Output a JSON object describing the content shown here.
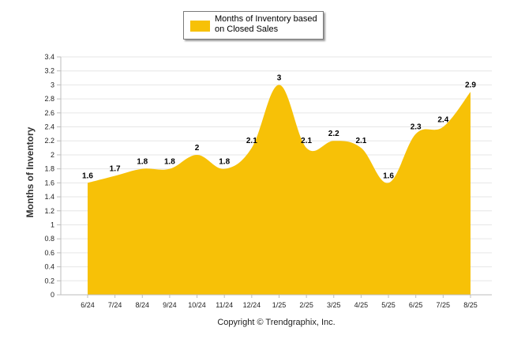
{
  "colors": {
    "area": "#f7c107",
    "grid": "#e6e6e6",
    "axis": "#bdbdbd"
  },
  "chart_data": {
    "type": "area",
    "categories": [
      "6/24",
      "7/24",
      "8/24",
      "9/24",
      "10/24",
      "11/24",
      "12/24",
      "1/25",
      "2/25",
      "3/25",
      "4/25",
      "5/25",
      "6/25",
      "7/25",
      "8/25"
    ],
    "series": [
      {
        "name": "Months of Inventory based on Closed Sales",
        "values": [
          1.6,
          1.7,
          1.8,
          1.8,
          2,
          1.8,
          2.1,
          3,
          2.1,
          2.2,
          2.1,
          1.6,
          2.3,
          2.4,
          2.9
        ]
      }
    ],
    "value_labels": [
      "1.6",
      "1.7",
      "1.8",
      "1.8",
      "2",
      "1.8",
      "2.1",
      "3",
      "2.1",
      "2.2",
      "2.1",
      "1.6",
      "2.3",
      "2.4",
      "2.9"
    ],
    "ylabel": "Months of Inventory",
    "ylim": [
      0,
      3.4
    ],
    "yticks": [
      "0",
      "0.2",
      "0.4",
      "0.6",
      "0.8",
      "1",
      "1.2",
      "1.4",
      "1.6",
      "1.8",
      "2",
      "2.2",
      "2.4",
      "2.6",
      "2.8",
      "3",
      "3.2",
      "3.4"
    ],
    "grid": true,
    "legend_position": "top-center"
  },
  "legend": {
    "label": "Months of Inventory based on Closed Sales"
  },
  "footer": {
    "copyright": "Copyright © Trendgraphix, Inc."
  }
}
